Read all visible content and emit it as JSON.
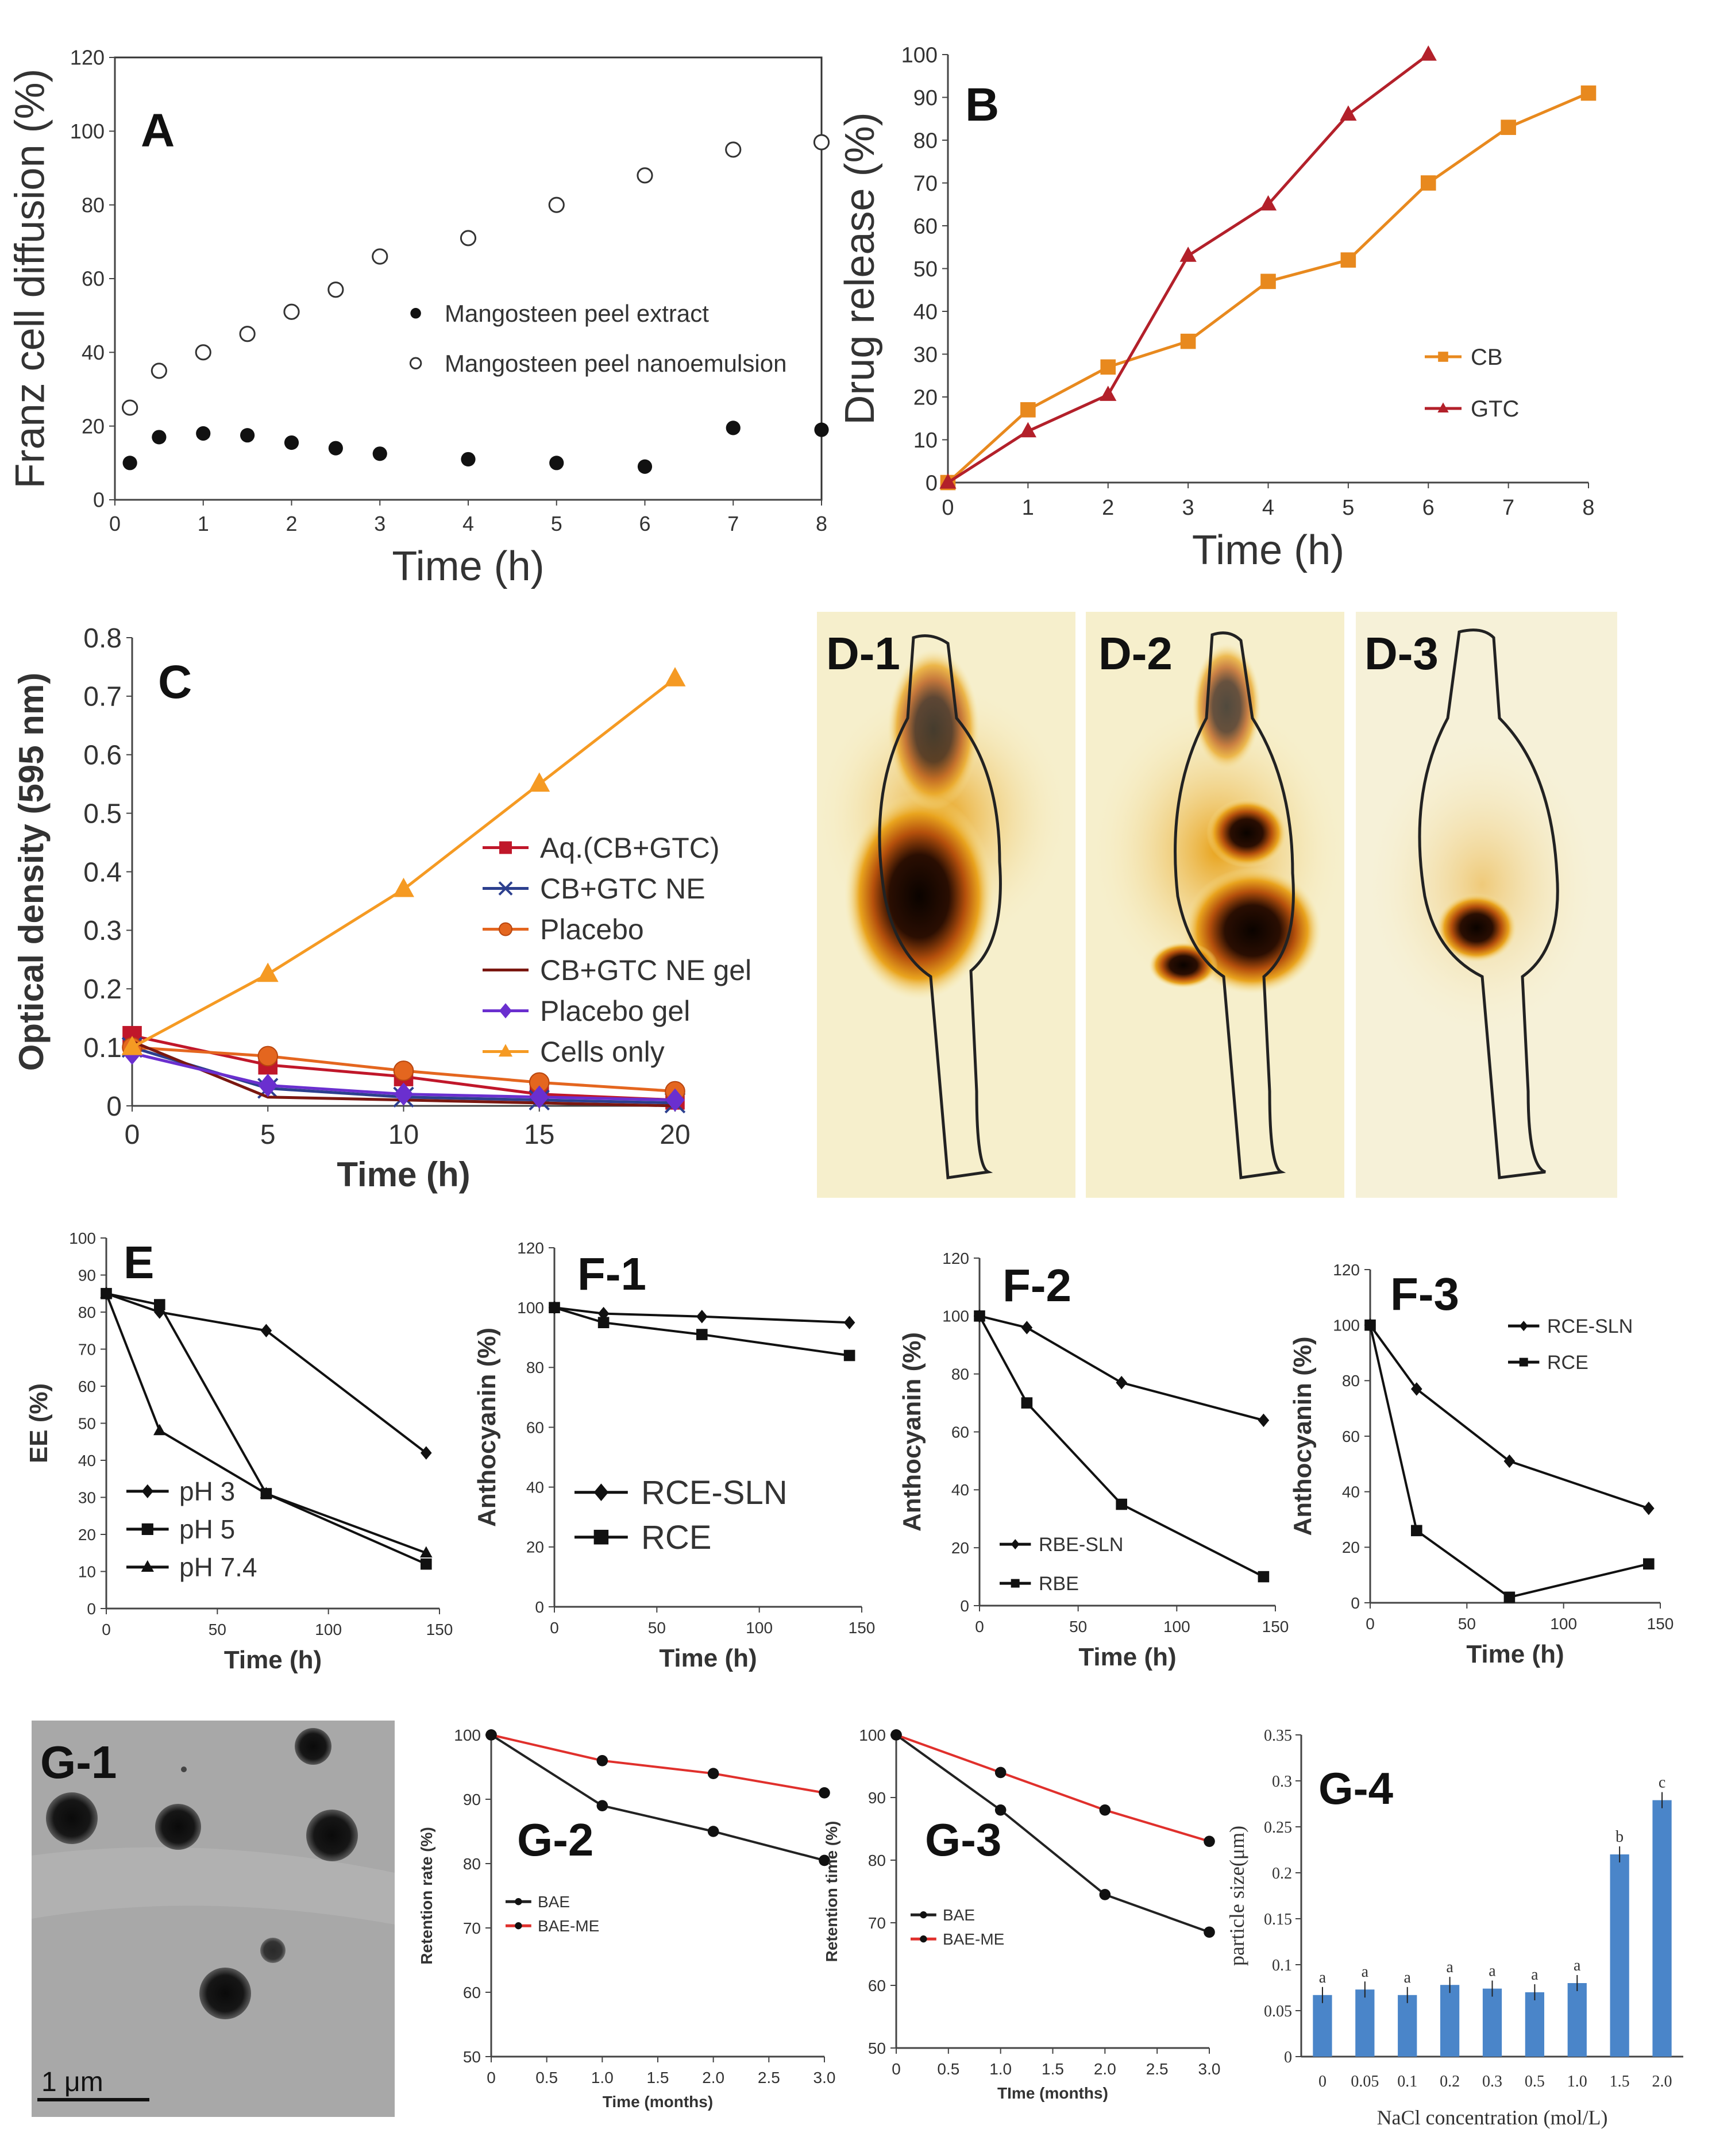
{
  "chart_data": [
    {
      "id": "A",
      "type": "scatter",
      "panel_label": "A",
      "xlabel": "Time (h)",
      "ylabel": "Franz cell diffusion (%)",
      "xlim": [
        0,
        8
      ],
      "ylim": [
        0,
        120
      ],
      "xticks": [
        "0",
        "1",
        "2",
        "3",
        "4",
        "5",
        "6",
        "7",
        "8"
      ],
      "yticks": [
        "0",
        "20",
        "40",
        "60",
        "80",
        "100",
        "120"
      ],
      "legend_position": "center-right",
      "series": [
        {
          "name": "Mangosteen peel extract",
          "marker": "filled-circle",
          "x": [
            0.17,
            0.5,
            1,
            1.5,
            2,
            2.5,
            3,
            4,
            5,
            6,
            7,
            8
          ],
          "y": [
            10,
            17,
            18,
            17.5,
            15.5,
            14,
            12.5,
            11,
            10,
            9,
            19.5,
            19
          ]
        },
        {
          "name": "Mangosteen peel nanoemulsion",
          "marker": "open-circle",
          "x": [
            0.17,
            0.5,
            1,
            1.5,
            2,
            2.5,
            3,
            4,
            5,
            6,
            7,
            8
          ],
          "y": [
            25,
            35,
            40,
            45,
            51,
            57,
            66,
            71,
            80,
            88,
            95,
            97
          ]
        }
      ]
    },
    {
      "id": "B",
      "type": "line",
      "panel_label": "B",
      "xlabel": "Time (h)",
      "ylabel": "Drug release (%)",
      "xlim": [
        0,
        8
      ],
      "ylim": [
        0,
        100
      ],
      "xticks": [
        "0",
        "1",
        "2",
        "3",
        "4",
        "5",
        "6",
        "7",
        "8"
      ],
      "yticks": [
        "0",
        "10",
        "20",
        "30",
        "40",
        "50",
        "60",
        "70",
        "80",
        "90",
        "100"
      ],
      "legend_position": "right",
      "series": [
        {
          "name": "CB",
          "color": "#e8891e",
          "marker": "square",
          "x": [
            0,
            1,
            2,
            3,
            4,
            5,
            6,
            7,
            8
          ],
          "y": [
            0,
            17,
            27,
            33,
            47,
            52,
            70,
            83,
            91
          ]
        },
        {
          "name": "GTC",
          "color": "#b3202a",
          "marker": "triangle",
          "x": [
            0,
            1,
            2,
            3,
            4,
            5,
            6
          ],
          "y": [
            0,
            12,
            20.5,
            53,
            65,
            86,
            100
          ]
        }
      ]
    },
    {
      "id": "C",
      "type": "line",
      "panel_label": "C",
      "xlabel": "Time (h)",
      "ylabel": "Optical density (595 nm)",
      "xlim": [
        0,
        20
      ],
      "ylim": [
        0,
        0.8
      ],
      "xticks": [
        "0",
        "5",
        "10",
        "15",
        "20"
      ],
      "yticks": [
        "0",
        "0.1",
        "0.2",
        "0.3",
        "0.4",
        "0.5",
        "0.6",
        "0.7",
        "0.8"
      ],
      "legend_position": "center-right",
      "series": [
        {
          "name": "Aq.(CB+GTC)",
          "color": "#c0172a",
          "marker": "square",
          "x": [
            0,
            5,
            10,
            15,
            20
          ],
          "y": [
            0.12,
            0.07,
            0.05,
            0.02,
            0.01
          ]
        },
        {
          "name": "CB+GTC NE",
          "color": "#2c3f8e",
          "marker": "x",
          "x": [
            0,
            5,
            10,
            15,
            20
          ],
          "y": [
            0.1,
            0.03,
            0.015,
            0.01,
            0.005
          ]
        },
        {
          "name": "Placebo",
          "color": "#e4661f",
          "marker": "circle",
          "x": [
            0,
            5,
            10,
            15,
            20
          ],
          "y": [
            0.1,
            0.085,
            0.06,
            0.04,
            0.025
          ]
        },
        {
          "name": "CB+GTC NE gel",
          "color": "#7a1710",
          "marker": "none",
          "x": [
            0,
            5,
            10,
            15,
            20
          ],
          "y": [
            0.11,
            0.015,
            0.01,
            0.005,
            0.0
          ]
        },
        {
          "name": "Placebo gel",
          "color": "#6a2fcf",
          "marker": "diamond",
          "x": [
            0,
            5,
            10,
            15,
            20
          ],
          "y": [
            0.09,
            0.035,
            0.02,
            0.015,
            0.01
          ]
        },
        {
          "name": "Cells only",
          "color": "#f59a23",
          "marker": "triangle",
          "x": [
            0,
            5,
            10,
            15,
            20
          ],
          "y": [
            0.1,
            0.225,
            0.37,
            0.55,
            0.73
          ]
        }
      ]
    },
    {
      "id": "E",
      "type": "line",
      "panel_label": "E",
      "xlabel": "Time (h)",
      "ylabel": "EE (%)",
      "xlim": [
        0,
        150
      ],
      "ylim": [
        0,
        100
      ],
      "xticks": [
        "0",
        "50",
        "100",
        "150"
      ],
      "yticks": [
        "0",
        "10",
        "20",
        "30",
        "40",
        "50",
        "60",
        "70",
        "80",
        "90",
        "100"
      ],
      "legend_position": "bottom-left",
      "series": [
        {
          "name": "pH 3",
          "marker": "diamond",
          "x": [
            0,
            24,
            72,
            144
          ],
          "y": [
            85,
            80,
            75,
            42
          ]
        },
        {
          "name": "pH 5",
          "marker": "square",
          "x": [
            0,
            24,
            72,
            144
          ],
          "y": [
            85,
            82,
            31,
            12
          ]
        },
        {
          "name": "pH 7.4",
          "marker": "triangle",
          "x": [
            0,
            24,
            72,
            144
          ],
          "y": [
            85,
            48,
            31,
            15
          ]
        }
      ]
    },
    {
      "id": "F-1",
      "type": "line",
      "panel_label": "F-1",
      "xlabel": "Time (h)",
      "ylabel": "Anthocyanin (%)",
      "xlim": [
        0,
        150
      ],
      "ylim": [
        0,
        120
      ],
      "xticks": [
        "0",
        "50",
        "100",
        "150"
      ],
      "yticks": [
        "0",
        "20",
        "40",
        "60",
        "80",
        "100",
        "120"
      ],
      "legend_position": "bottom-left",
      "series": [
        {
          "name": "RCE-SLN",
          "marker": "diamond",
          "x": [
            0,
            24,
            72,
            144
          ],
          "y": [
            100,
            98,
            97,
            95
          ]
        },
        {
          "name": "RCE",
          "marker": "square",
          "x": [
            0,
            24,
            72,
            144
          ],
          "y": [
            100,
            95,
            91,
            84
          ]
        }
      ]
    },
    {
      "id": "F-2",
      "type": "line",
      "panel_label": "F-2",
      "xlabel": "Time (h)",
      "ylabel": "Anthocyanin (%)",
      "xlim": [
        0,
        150
      ],
      "ylim": [
        0,
        120
      ],
      "xticks": [
        "0",
        "50",
        "100",
        "150"
      ],
      "yticks": [
        "0",
        "20",
        "40",
        "60",
        "80",
        "100",
        "120"
      ],
      "legend_position": "bottom-left",
      "series": [
        {
          "name": "RBE-SLN",
          "marker": "diamond",
          "x": [
            0,
            24,
            72,
            144
          ],
          "y": [
            100,
            96,
            77,
            64
          ]
        },
        {
          "name": "RBE",
          "marker": "square",
          "x": [
            0,
            24,
            72,
            144
          ],
          "y": [
            100,
            70,
            35,
            10
          ]
        }
      ]
    },
    {
      "id": "F-3",
      "type": "line",
      "panel_label": "F-3",
      "xlabel": "Time (h)",
      "ylabel": "Anthocyanin (%)",
      "xlim": [
        0,
        150
      ],
      "ylim": [
        0,
        120
      ],
      "xticks": [
        "0",
        "50",
        "100",
        "150"
      ],
      "yticks": [
        "0",
        "20",
        "40",
        "60",
        "80",
        "100",
        "120"
      ],
      "legend_position": "top-right",
      "series": [
        {
          "name": "RCE-SLN",
          "marker": "diamond",
          "x": [
            0,
            24,
            72,
            144
          ],
          "y": [
            100,
            77,
            51,
            34
          ]
        },
        {
          "name": "RCE",
          "marker": "square",
          "x": [
            0,
            24,
            72,
            144
          ],
          "y": [
            100,
            26,
            2,
            14
          ]
        }
      ]
    },
    {
      "id": "G-2",
      "type": "line",
      "panel_label": "G-2",
      "xlabel": "Time (months)",
      "ylabel": "Retention rate (%)",
      "xlim": [
        0,
        3
      ],
      "ylim": [
        50,
        100
      ],
      "xticks": [
        "0",
        "0.5",
        "1.0",
        "1.5",
        "2.0",
        "2.5",
        "3.0"
      ],
      "yticks": [
        "50",
        "60",
        "70",
        "80",
        "90",
        "100"
      ],
      "legend_position": "center-left",
      "series": [
        {
          "name": "BAE",
          "color": "#222222",
          "x": [
            0,
            1,
            2,
            3
          ],
          "y": [
            100,
            89,
            85,
            80.5
          ]
        },
        {
          "name": "BAE-ME",
          "color": "#e0302c",
          "x": [
            0,
            1,
            2,
            3
          ],
          "y": [
            100,
            96,
            94,
            91
          ]
        }
      ]
    },
    {
      "id": "G-3",
      "type": "line",
      "panel_label": "G-3",
      "xlabel": "TIme (months)",
      "ylabel": "Retention time (%)",
      "xlim": [
        0,
        3
      ],
      "ylim": [
        50,
        100
      ],
      "xticks": [
        "0",
        "0.5",
        "1.0",
        "1.5",
        "2.0",
        "2.5",
        "3.0"
      ],
      "yticks": [
        "50",
        "60",
        "70",
        "80",
        "90",
        "100"
      ],
      "legend_position": "center-left",
      "series": [
        {
          "name": "BAE",
          "color": "#222222",
          "x": [
            0,
            1,
            2,
            3
          ],
          "y": [
            100,
            88,
            74.5,
            68.5
          ]
        },
        {
          "name": "BAE-ME",
          "color": "#e0302c",
          "x": [
            0,
            1,
            2,
            3
          ],
          "y": [
            100,
            94,
            88,
            83
          ]
        }
      ]
    },
    {
      "id": "G-4",
      "type": "bar",
      "panel_label": "G-4",
      "xlabel": "NaCl concentration (mol/L)",
      "ylabel": "particle size(μm)",
      "ylim": [
        0,
        0.35
      ],
      "yticks": [
        "0",
        "0.05",
        "0.1",
        "0.15",
        "0.2",
        "0.25",
        "0.3",
        "0.35"
      ],
      "categories": [
        "0",
        "0.05",
        "0.1",
        "0.2",
        "0.3",
        "0.5",
        "1.0",
        "1.5",
        "2.0"
      ],
      "values": [
        0.067,
        0.073,
        0.067,
        0.078,
        0.074,
        0.07,
        0.08,
        0.22,
        0.279
      ],
      "bar_labels": [
        "a",
        "a",
        "a",
        "a",
        "a",
        "a",
        "a",
        "b",
        "c"
      ],
      "color": "#4a85c9"
    }
  ],
  "images": {
    "D1": {
      "label": "D-1"
    },
    "D2": {
      "label": "D-2"
    },
    "D3": {
      "label": "D-3"
    },
    "G1": {
      "label": "G-1",
      "scale_label": "1  μm"
    }
  }
}
